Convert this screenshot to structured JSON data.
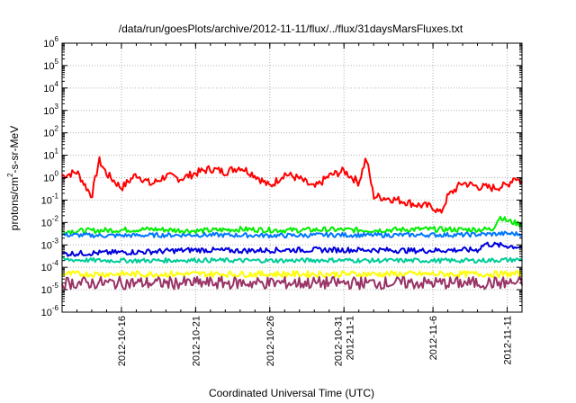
{
  "chart_data": {
    "type": "line",
    "title": "/data/run/goesPlots/archive/2012-11-11/flux/../flux/31daysMarsFluxes.txt",
    "xlabel": "Coordinated Universal Time (UTC)",
    "ylabel": {
      "parts": [
        {
          "text": "protons/cm",
          "sup": false
        },
        {
          "text": "2",
          "sup": true
        },
        {
          "text": "-s-sr-MeV",
          "sup": false
        }
      ]
    },
    "yscale": "log",
    "ylim": [
      1e-06,
      1000000.0
    ],
    "xlim": [
      "2012-10-12 00:00",
      "2012-11-12 00:00"
    ],
    "grid": true,
    "y_ticks": [
      {
        "value": 1e-06,
        "base": "10",
        "exp": "-6"
      },
      {
        "value": 1e-05,
        "base": "10",
        "exp": "-5"
      },
      {
        "value": 0.0001,
        "base": "10",
        "exp": "-4"
      },
      {
        "value": 0.001,
        "base": "10",
        "exp": "-3"
      },
      {
        "value": 0.01,
        "base": "10",
        "exp": "-2"
      },
      {
        "value": 0.1,
        "base": "10",
        "exp": "-1"
      },
      {
        "value": 1,
        "base": "10",
        "exp": "0"
      },
      {
        "value": 10,
        "base": "10",
        "exp": "1"
      },
      {
        "value": 100,
        "base": "10",
        "exp": "2"
      },
      {
        "value": 1000,
        "base": "10",
        "exp": "3"
      },
      {
        "value": 10000,
        "base": "10",
        "exp": "4"
      },
      {
        "value": 100000,
        "base": "10",
        "exp": "5"
      },
      {
        "value": 1000000,
        "base": "10",
        "exp": "6"
      }
    ],
    "x_ticks": [
      {
        "date": "2012-10-16",
        "lines": [
          "2012-10-16"
        ]
      },
      {
        "date": "2012-10-21",
        "lines": [
          "2012-10-21"
        ]
      },
      {
        "date": "2012-10-26",
        "lines": [
          "2012-10-26"
        ]
      },
      {
        "date": "2012-10-31",
        "lines": [
          "2012-10-31",
          "2012-11-1"
        ]
      },
      {
        "date": "2012-11-06",
        "lines": [
          "2012-11-6"
        ]
      },
      {
        "date": "2012-11-11",
        "lines": [
          "2012-11-11"
        ]
      }
    ],
    "series": [
      {
        "color": "#ff0000",
        "x": [
          "2012-10-12",
          "2012-10-13",
          "2012-10-14",
          "2012-10-14 12:00",
          "2012-10-15",
          "2012-10-16",
          "2012-10-17",
          "2012-10-18",
          "2012-10-19",
          "2012-10-20",
          "2012-10-21",
          "2012-10-22",
          "2012-10-23",
          "2012-10-24",
          "2012-10-25",
          "2012-10-26",
          "2012-10-27",
          "2012-10-28",
          "2012-10-29",
          "2012-10-30",
          "2012-10-31",
          "2012-11-01",
          "2012-11-01 12:00",
          "2012-11-02",
          "2012-11-03",
          "2012-11-04",
          "2012-11-05",
          "2012-11-06",
          "2012-11-06 12:00",
          "2012-11-07",
          "2012-11-08",
          "2012-11-09",
          "2012-11-10",
          "2012-11-11",
          "2012-11-11 12:00",
          "2012-11-12"
        ],
        "values": [
          1.2,
          1.8,
          0.15,
          6,
          1.5,
          0.35,
          1.4,
          0.5,
          1.2,
          0.9,
          1.6,
          2.5,
          1.8,
          3,
          1.3,
          0.4,
          1.5,
          0.9,
          0.35,
          1.2,
          2,
          0.6,
          8,
          0.15,
          0.12,
          0.09,
          0.06,
          0.05,
          0.025,
          0.15,
          0.6,
          0.4,
          0.35,
          0.45,
          1.1,
          0.6
        ]
      },
      {
        "color": "#00ee00",
        "x": [
          "2012-10-12",
          "2012-10-15",
          "2012-10-18",
          "2012-10-21",
          "2012-10-24",
          "2012-10-27",
          "2012-10-30",
          "2012-11-02",
          "2012-11-05",
          "2012-11-08",
          "2012-11-10",
          "2012-11-10 12:00",
          "2012-11-11",
          "2012-11-12"
        ],
        "values": [
          0.004,
          0.0045,
          0.005,
          0.0042,
          0.005,
          0.0045,
          0.0048,
          0.0045,
          0.005,
          0.0048,
          0.005,
          0.018,
          0.012,
          0.008
        ]
      },
      {
        "color": "#0077ff",
        "x": [
          "2012-10-12",
          "2012-10-15",
          "2012-10-18",
          "2012-10-21",
          "2012-10-24",
          "2012-10-27",
          "2012-10-30",
          "2012-11-02",
          "2012-11-05",
          "2012-11-08",
          "2012-11-11",
          "2012-11-12"
        ],
        "values": [
          0.0028,
          0.0026,
          0.0027,
          0.0028,
          0.0027,
          0.0026,
          0.0028,
          0.0027,
          0.0028,
          0.0028,
          0.0032,
          0.003
        ]
      },
      {
        "color": "#0000dd",
        "x": [
          "2012-10-12",
          "2012-10-15",
          "2012-10-18",
          "2012-10-21",
          "2012-10-24",
          "2012-10-27",
          "2012-10-30",
          "2012-11-02",
          "2012-11-05",
          "2012-11-08",
          "2012-11-09",
          "2012-11-09 12:00",
          "2012-11-11",
          "2012-11-12"
        ],
        "values": [
          0.0004,
          0.00045,
          0.0005,
          0.0006,
          0.00055,
          0.0006,
          0.0006,
          0.0006,
          0.00055,
          0.0006,
          0.0006,
          0.0011,
          0.0009,
          0.0008
        ]
      },
      {
        "color": "#00cc99",
        "x": [
          "2012-10-12",
          "2012-10-15",
          "2012-10-18",
          "2012-10-21",
          "2012-10-24",
          "2012-10-27",
          "2012-10-30",
          "2012-11-02",
          "2012-11-05",
          "2012-11-09",
          "2012-11-12"
        ],
        "values": [
          0.00022,
          0.0002,
          0.0002,
          0.00021,
          0.0002,
          0.0002,
          0.00021,
          0.0002,
          0.0002,
          0.0002,
          0.00022
        ]
      },
      {
        "color": "#ffff00",
        "x": [
          "2012-10-12",
          "2012-10-16",
          "2012-10-20",
          "2012-10-24",
          "2012-10-28",
          "2012-11-01",
          "2012-11-05",
          "2012-11-09",
          "2012-11-12"
        ],
        "values": [
          5e-05,
          5e-05,
          5e-05,
          5e-05,
          5e-05,
          5e-05,
          5e-05,
          5e-05,
          5e-05
        ]
      },
      {
        "color": "#993366",
        "x": [
          "2012-10-12",
          "2012-10-16",
          "2012-10-20",
          "2012-10-24",
          "2012-10-28",
          "2012-11-01",
          "2012-11-05",
          "2012-11-09",
          "2012-11-12"
        ],
        "values": [
          2e-05,
          2e-05,
          2e-05,
          2e-05,
          2e-05,
          2e-05,
          2e-05,
          2e-05,
          2e-05
        ]
      }
    ]
  }
}
